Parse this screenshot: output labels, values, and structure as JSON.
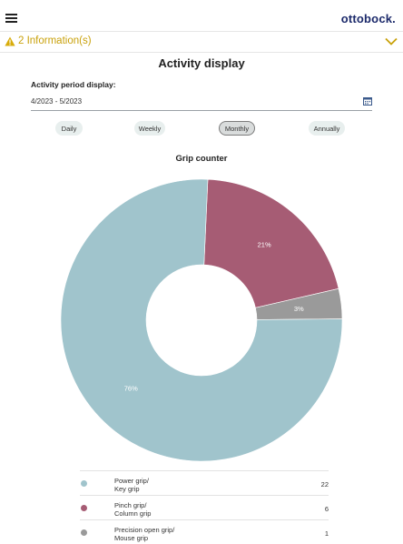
{
  "header": {
    "brand": "ottobock."
  },
  "info_bar": {
    "text": "2 Information(s)",
    "color": "#c9a10a"
  },
  "page": {
    "title": "Activity display"
  },
  "period": {
    "label": "Activity period display:",
    "value": "4/2023 - 5/2023"
  },
  "period_buttons": [
    {
      "label": "Daily",
      "active": false
    },
    {
      "label": "Weekly",
      "active": false
    },
    {
      "label": "Monthly",
      "active": true
    },
    {
      "label": "Annually",
      "active": false
    }
  ],
  "chart_data": {
    "type": "pie",
    "title": "Grip counter",
    "donut": true,
    "slices": [
      {
        "name": "Power grip/\nKey grip",
        "value": 22,
        "percent_label": "76%",
        "color": "#a0c4cc"
      },
      {
        "name": "Pinch grip/\nColumn grip",
        "value": 6,
        "percent_label": "21%",
        "color": "#a65c74"
      },
      {
        "name": "Precision open grip/\nMouse grip",
        "value": 1,
        "percent_label": "3%",
        "color": "#9a9a9a"
      }
    ]
  }
}
